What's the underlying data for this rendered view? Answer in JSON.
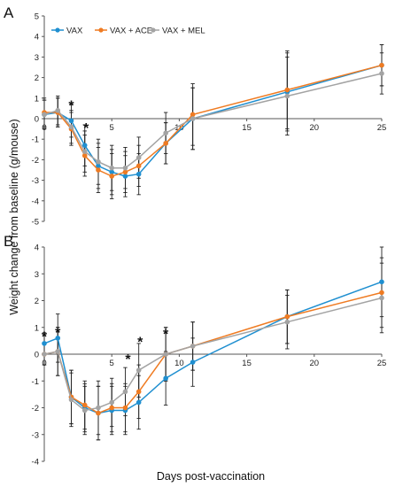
{
  "figure": {
    "ylabel": "Weight change from baseline (g/mouse)",
    "xlabel": "Days post-vaccination",
    "legend_position": "top-left"
  },
  "colors": {
    "VAX": "#1f8fd0",
    "VAX + ACE": "#ef7b22",
    "VAX + MEL": "#a3a3a3",
    "errorbar": "#222222"
  },
  "chart_data": [
    {
      "panel_label": "A",
      "type": "line",
      "xlim": [
        0,
        25
      ],
      "ylim": [
        -5,
        5
      ],
      "xticks": [
        0,
        5,
        10,
        15,
        20,
        25
      ],
      "yticks": [
        -5,
        -4,
        -3,
        -2,
        -1,
        0,
        1,
        2,
        3,
        4,
        5
      ],
      "x": [
        0,
        1,
        2,
        3,
        4,
        5,
        6,
        7,
        9,
        11,
        18,
        25
      ],
      "legend": [
        "VAX",
        "VAX + ACE",
        "VAX + MEL"
      ],
      "series": [
        {
          "name": "VAX",
          "values": [
            0.2,
            0.3,
            -0.1,
            -1.3,
            -2.3,
            -2.6,
            -2.8,
            -2.7,
            -1.2,
            0.0,
            1.3,
            2.6
          ]
        },
        {
          "name": "VAX + ACE",
          "values": [
            0.3,
            0.3,
            -0.5,
            -1.8,
            -2.5,
            -2.8,
            -2.6,
            -2.3,
            -1.2,
            0.2,
            1.4,
            2.6
          ]
        },
        {
          "name": "VAX + MEL",
          "values": [
            0.2,
            0.4,
            -0.4,
            -1.6,
            -2.1,
            -2.4,
            -2.4,
            -1.9,
            -0.7,
            0.0,
            1.1,
            2.2
          ]
        }
      ],
      "errors": [
        0.7,
        0.7,
        0.8,
        1.0,
        1.1,
        1.1,
        1.0,
        1.0,
        1.0,
        1.5,
        1.9,
        1.0
      ],
      "annotations": [
        {
          "text": "*",
          "x": 2,
          "y": 0.75
        },
        {
          "text": "*",
          "x": 3.1,
          "y": -0.35
        }
      ]
    },
    {
      "panel_label": "B",
      "type": "line",
      "xlim": [
        0,
        25
      ],
      "ylim": [
        -4,
        4
      ],
      "xticks": [
        0,
        5,
        10,
        15,
        20,
        25
      ],
      "yticks": [
        -4,
        -3,
        -2,
        -1,
        0,
        1,
        2,
        3,
        4
      ],
      "x": [
        0,
        1,
        2,
        3,
        4,
        5,
        6,
        7,
        9,
        11,
        18,
        25
      ],
      "series": [
        {
          "name": "VAX",
          "values": [
            0.4,
            0.6,
            -1.6,
            -2.0,
            -2.2,
            -2.1,
            -2.1,
            -1.8,
            -0.9,
            -0.3,
            1.4,
            2.7
          ]
        },
        {
          "name": "VAX + ACE",
          "values": [
            0.0,
            0.1,
            -1.6,
            -1.9,
            -2.2,
            -2.0,
            -2.0,
            -1.4,
            0.0,
            0.3,
            1.4,
            2.3
          ]
        },
        {
          "name": "VAX + MEL",
          "values": [
            0.0,
            0.1,
            -1.7,
            -2.1,
            -2.0,
            -1.8,
            -1.4,
            -0.6,
            0.0,
            0.3,
            1.2,
            2.1
          ]
        }
      ],
      "errors": [
        0.4,
        0.9,
        1.0,
        0.9,
        1.0,
        0.9,
        0.9,
        1.0,
        1.0,
        0.9,
        1.0,
        1.3
      ],
      "annotations": [
        {
          "text": "*",
          "x": 0,
          "y": 0.75
        },
        {
          "text": "*",
          "x": 1,
          "y": 0.9
        },
        {
          "text": "*",
          "x": 6.2,
          "y": -0.1
        },
        {
          "text": "*",
          "x": 7.1,
          "y": 0.55
        },
        {
          "text": "*",
          "x": 9,
          "y": 0.85
        }
      ]
    }
  ]
}
